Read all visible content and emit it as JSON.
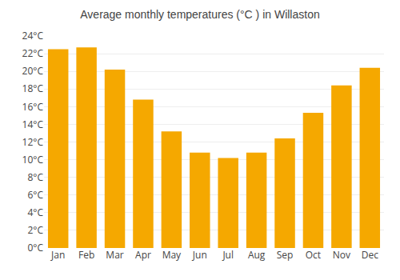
{
  "chart_data": {
    "type": "bar",
    "title": "Average monthly temperatures (°C ) in Willaston",
    "categories": [
      "Jan",
      "Feb",
      "Mar",
      "Apr",
      "May",
      "Jun",
      "Jul",
      "Aug",
      "Sep",
      "Oct",
      "Nov",
      "Dec"
    ],
    "values": [
      22.5,
      22.7,
      20.2,
      16.8,
      13.2,
      10.8,
      10.2,
      10.8,
      12.4,
      15.3,
      18.4,
      20.4
    ],
    "color": "#F5A800",
    "ylim": [
      0,
      24
    ],
    "yticks": [
      {
        "value": 0,
        "label": "0°C"
      },
      {
        "value": 2,
        "label": "2°C"
      },
      {
        "value": 4,
        "label": "4°C"
      },
      {
        "value": 6,
        "label": "6°C"
      },
      {
        "value": 8,
        "label": "8°C"
      },
      {
        "value": 10,
        "label": "10°C"
      },
      {
        "value": 12,
        "label": "12°C"
      },
      {
        "value": 14,
        "label": "14°C"
      },
      {
        "value": 16,
        "label": "16°C"
      },
      {
        "value": 18,
        "label": "18°C"
      },
      {
        "value": 20,
        "label": "20°C"
      },
      {
        "value": 22,
        "label": "22°C"
      },
      {
        "value": 24,
        "label": "24°C"
      }
    ],
    "grid": true
  }
}
